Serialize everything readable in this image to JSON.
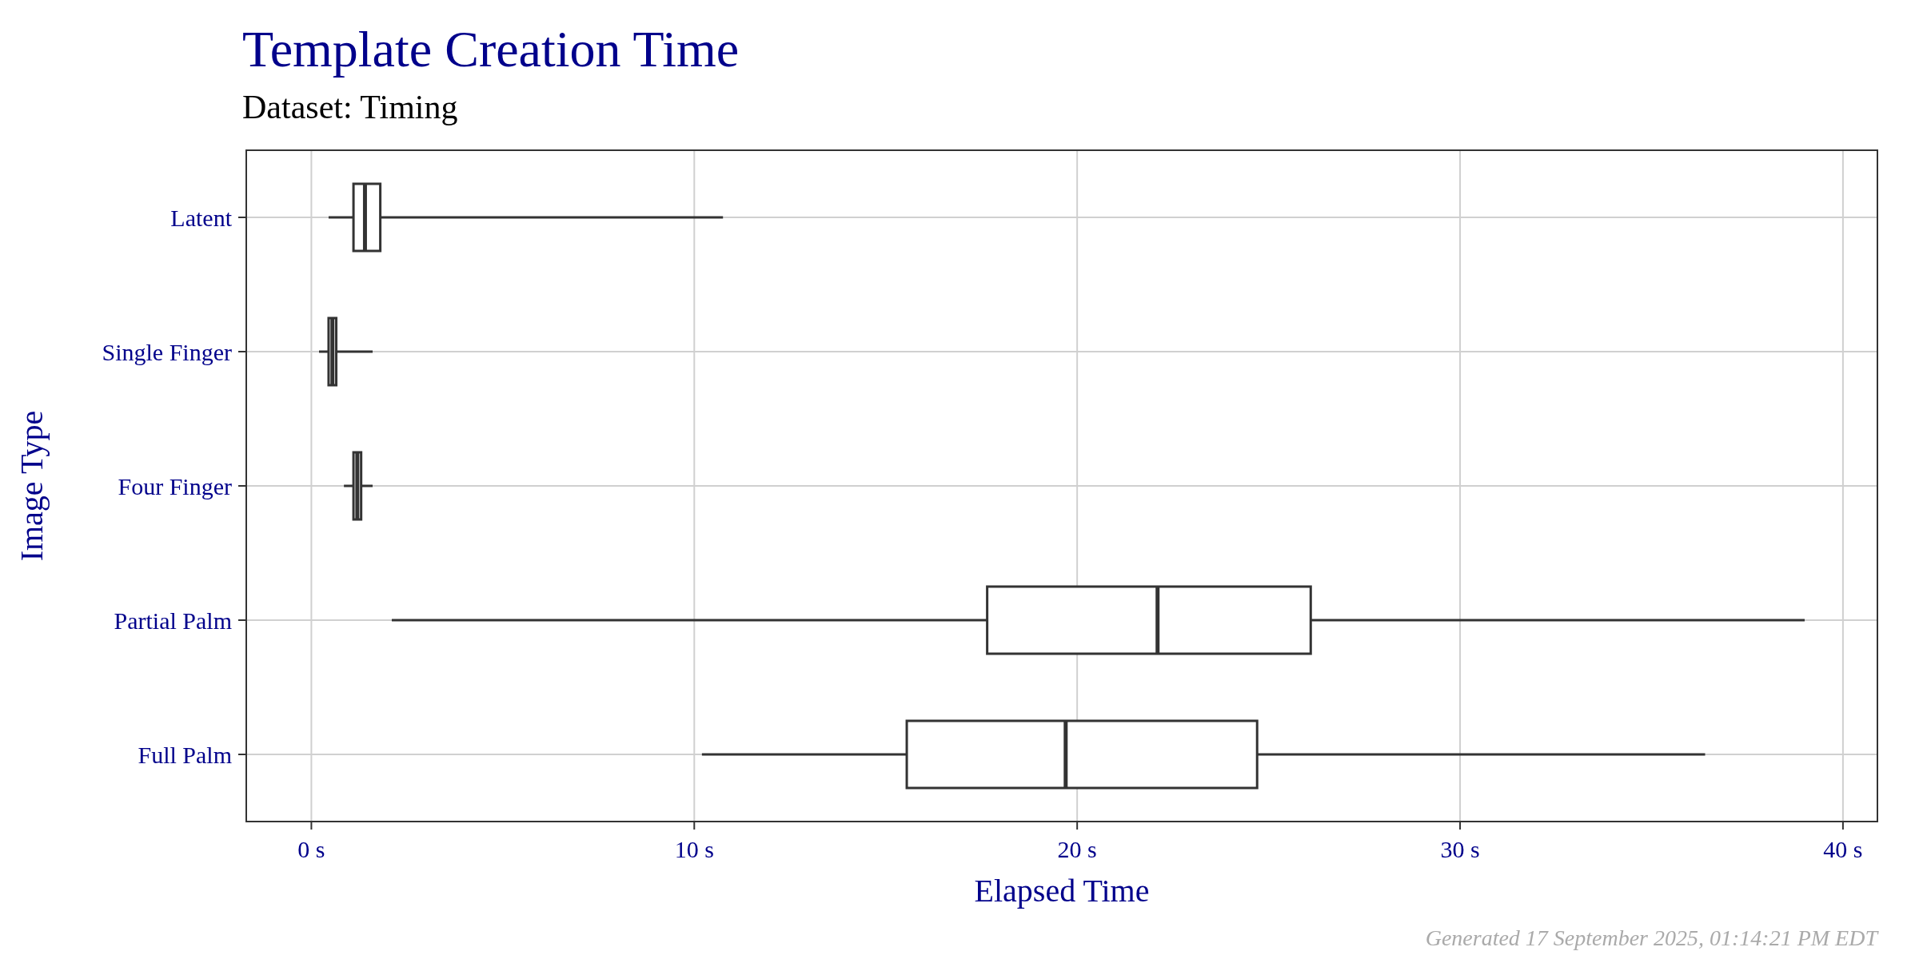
{
  "chart_data": {
    "type": "box",
    "orientation": "horizontal",
    "title": "Template Creation Time",
    "subtitle": "Dataset: Timing",
    "xlabel": "Elapsed Time",
    "ylabel": "Image Type",
    "categories": [
      "Latent",
      "Single Finger",
      "Four Finger",
      "Partial Palm",
      "Full Palm"
    ],
    "boxes": [
      {
        "low": 0.45,
        "q1": 1.1,
        "median": 1.4,
        "q3": 1.8,
        "high": 10.75
      },
      {
        "low": 0.2,
        "q1": 0.45,
        "median": 0.55,
        "q3": 0.65,
        "high": 1.6
      },
      {
        "low": 0.85,
        "q1": 1.1,
        "median": 1.2,
        "q3": 1.3,
        "high": 1.6
      },
      {
        "low": 2.1,
        "q1": 17.65,
        "median": 22.1,
        "q3": 26.1,
        "high": 39.0
      },
      {
        "low": 10.2,
        "q1": 15.55,
        "median": 19.7,
        "q3": 24.7,
        "high": 36.4
      }
    ],
    "xlim": [
      -1.7,
      40.9
    ],
    "xticks": [
      {
        "value": 0,
        "label": "0 s"
      },
      {
        "value": 10,
        "label": "10 s"
      },
      {
        "value": 20,
        "label": "20 s"
      },
      {
        "value": 30,
        "label": "30 s"
      },
      {
        "value": 40,
        "label": "40 s"
      }
    ],
    "grid": true,
    "annotations": [
      "Generated 17 September 2025, 01:14:21 PM EDT"
    ]
  }
}
